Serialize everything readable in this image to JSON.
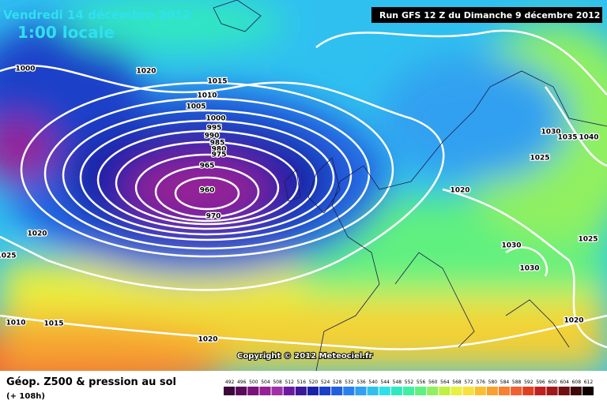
{
  "header": {
    "date": "Vendredi 14 décembre 2012",
    "time": "1:00 locale",
    "run": "Run GFS 12 Z du Dimanche 9 décembre 2012"
  },
  "copyright": "Copyright © 2012 Meteociel.fr",
  "footer": {
    "title": "Géop. Z500 & pression au sol",
    "lead": "(+ 108h)"
  },
  "isobar_labels": [
    "1000",
    "1020",
    "1015",
    "1010",
    "1005",
    "1000",
    "995",
    "990",
    "985",
    "980",
    "975",
    "965",
    "960",
    "970",
    "1020",
    "1025",
    "1010",
    "1015",
    "1020",
    "1020",
    "1030",
    "1035",
    "1040",
    "1025",
    "1025",
    "1030",
    "1030",
    "1020"
  ],
  "color_scale": [
    {
      "value": 492,
      "color": "#3b0a3b"
    },
    {
      "value": 496,
      "color": "#5a0a5a"
    },
    {
      "value": 500,
      "color": "#7a107a"
    },
    {
      "value": 504,
      "color": "#962096"
    },
    {
      "value": 508,
      "color": "#a030a8"
    },
    {
      "value": 512,
      "color": "#6a1aa0"
    },
    {
      "value": 516,
      "color": "#3a1898"
    },
    {
      "value": 520,
      "color": "#1a20a8"
    },
    {
      "value": 524,
      "color": "#1a40c8"
    },
    {
      "value": 528,
      "color": "#2060e0"
    },
    {
      "value": 532,
      "color": "#2a80f0"
    },
    {
      "value": 536,
      "color": "#30a0f0"
    },
    {
      "value": 540,
      "color": "#30c0f0"
    },
    {
      "value": 544,
      "color": "#30e0e8"
    },
    {
      "value": 548,
      "color": "#30e8c0"
    },
    {
      "value": 552,
      "color": "#40f0a0"
    },
    {
      "value": 556,
      "color": "#60f080"
    },
    {
      "value": 560,
      "color": "#90f060"
    },
    {
      "value": 564,
      "color": "#c0f040"
    },
    {
      "value": 568,
      "color": "#e8f040"
    },
    {
      "value": 572,
      "color": "#f8e040"
    },
    {
      "value": 576,
      "color": "#f8c030"
    },
    {
      "value": 580,
      "color": "#f8a030"
    },
    {
      "value": 584,
      "color": "#f88030"
    },
    {
      "value": 588,
      "color": "#f06030"
    },
    {
      "value": 592,
      "color": "#e04020"
    },
    {
      "value": 596,
      "color": "#c02020"
    },
    {
      "value": 600,
      "color": "#a01818"
    },
    {
      "value": 604,
      "color": "#701010"
    },
    {
      "value": 608,
      "color": "#400808"
    },
    {
      "value": 612,
      "color": "#100000"
    }
  ]
}
